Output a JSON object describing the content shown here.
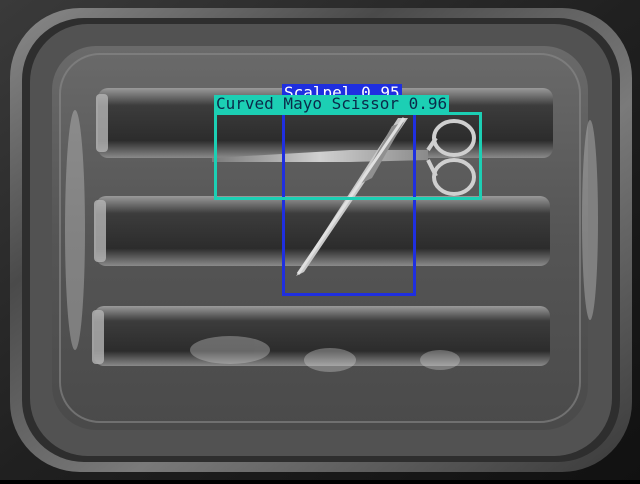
{
  "detections": [
    {
      "label": "Scalpel 0.95",
      "color": "#1f2fe0",
      "text_color": "#ffffff"
    },
    {
      "label": "Curved Mayo Scissor 0.96",
      "color": "#1ccfb4",
      "text_color": "#0a2a4a"
    }
  ],
  "colors": {
    "tray": "#5f5f5f",
    "tray_rim": "#9a9a9a",
    "tray_shadow": "#2a2a2a",
    "instrument": "#b8b8b8"
  }
}
